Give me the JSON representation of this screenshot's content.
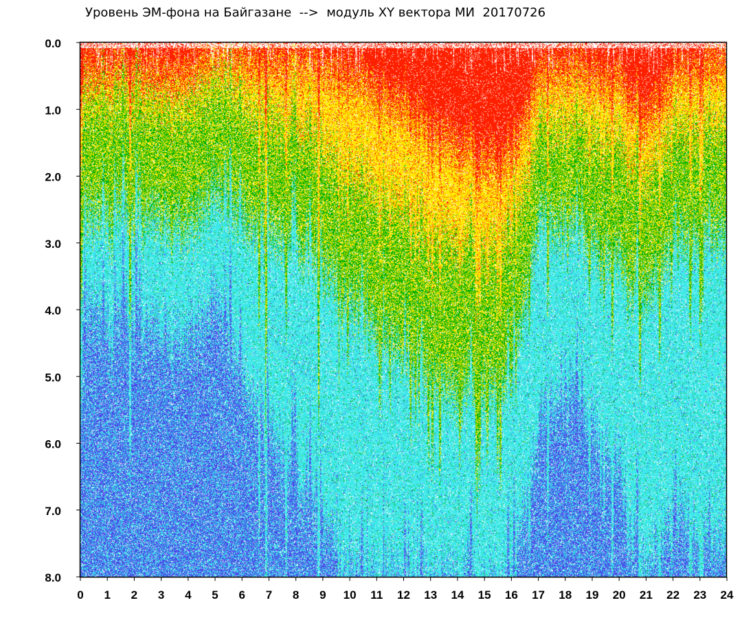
{
  "chart_data": {
    "type": "heatmap",
    "title": "Уровень ЭМ-фона на Байгазане  -->  модуль XY вектора МИ  20170726",
    "xlabel": "",
    "ylabel": "",
    "xlim": [
      0,
      24
    ],
    "ylim": [
      0.0,
      8.0
    ],
    "y_inverted": true,
    "x_ticks": [
      "0",
      "1",
      "2",
      "3",
      "4",
      "5",
      "6",
      "7",
      "8",
      "9",
      "10",
      "11",
      "12",
      "13",
      "14",
      "15",
      "16",
      "17",
      "18",
      "19",
      "20",
      "21",
      "22",
      "23",
      "24"
    ],
    "y_ticks": [
      "0.0",
      "1.0",
      "2.0",
      "3.0",
      "4.0",
      "5.0",
      "6.0",
      "7.0",
      "8.0"
    ],
    "grid": false,
    "color_levels": [
      {
        "level": "highest",
        "color": "#ff2000"
      },
      {
        "level": "high",
        "color": "#ffe800"
      },
      {
        "level": "medium",
        "color": "#00b000"
      },
      {
        "level": "low",
        "color": "#3ee8e8"
      },
      {
        "level": "lowest",
        "color": "#4a4ae8"
      }
    ],
    "depth_profile": {
      "hours": [
        0,
        1,
        2,
        3,
        4,
        5,
        6,
        8,
        10,
        12,
        14,
        16,
        17,
        18,
        20,
        21,
        22,
        23,
        24
      ],
      "red_to": [
        0.5,
        0.4,
        0.4,
        0.5,
        0.5,
        0.15,
        0.25,
        0.35,
        0.55,
        1.0,
        1.6,
        1.8,
        0.5,
        0.4,
        0.6,
        1.2,
        0.5,
        0.4,
        0.3
      ],
      "yellow_to": [
        0.9,
        0.8,
        0.8,
        0.9,
        1.0,
        0.6,
        0.9,
        1.3,
        2.0,
        2.5,
        3.0,
        2.9,
        1.2,
        1.2,
        1.5,
        2.0,
        1.3,
        1.3,
        1.2
      ],
      "green_to": [
        2.6,
        2.5,
        2.5,
        2.6,
        2.8,
        2.2,
        2.6,
        3.0,
        3.9,
        4.7,
        5.3,
        5.0,
        2.6,
        2.7,
        3.3,
        3.8,
        3.0,
        2.9,
        2.8
      ],
      "cyan_to": [
        3.8,
        4.2,
        4.0,
        4.3,
        4.5,
        3.8,
        5.0,
        6.5,
        8.0,
        8.0,
        8.0,
        8.0,
        5.8,
        5.0,
        6.5,
        8.0,
        7.0,
        7.5,
        7.5
      ]
    }
  }
}
